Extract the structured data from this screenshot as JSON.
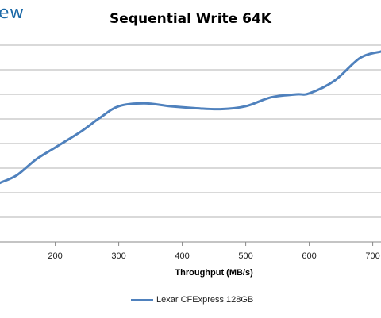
{
  "brand_text": "ew",
  "chart_data": {
    "type": "line",
    "title": "Sequential Write 64K",
    "xlabel": "Throughput (MB/s)",
    "ylabel": "",
    "xlim": [
      113,
      713
    ],
    "x_ticks": [
      200,
      300,
      400,
      500,
      600,
      700
    ],
    "y_gridlines": 9,
    "grid": true,
    "legend_position": "bottom-center",
    "series": [
      {
        "name": "Lexar CFExpress 128GB",
        "color": "#4f81bd",
        "points": [
          [
            113,
            0.2
          ],
          [
            140,
            0.16
          ],
          [
            170,
            0.08
          ],
          [
            200,
            0.02
          ],
          [
            240,
            -0.06
          ],
          [
            270,
            -0.13
          ],
          [
            300,
            -0.19
          ],
          [
            340,
            -0.205
          ],
          [
            380,
            -0.19
          ],
          [
            420,
            -0.18
          ],
          [
            460,
            -0.175
          ],
          [
            500,
            -0.19
          ],
          [
            540,
            -0.235
          ],
          [
            580,
            -0.25
          ],
          [
            600,
            -0.255
          ],
          [
            640,
            -0.32
          ],
          [
            680,
            -0.435
          ],
          [
            713,
            -0.468
          ]
        ]
      }
    ]
  }
}
